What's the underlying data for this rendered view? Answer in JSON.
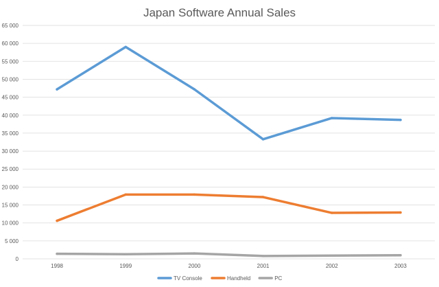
{
  "chart_data": {
    "type": "line",
    "title": "Japan Software Annual Sales",
    "xlabel": "",
    "ylabel": "",
    "categories": [
      "1998",
      "1999",
      "2000",
      "2001",
      "2002",
      "2003"
    ],
    "y_ticks": [
      "0",
      "5 000",
      "10 000",
      "15 000",
      "20 000",
      "25 000",
      "30 000",
      "35 000",
      "40 000",
      "45 000",
      "50 000",
      "55 000",
      "60 000",
      "65 000"
    ],
    "ylim": [
      0,
      65000
    ],
    "y_step": 5000,
    "grid": true,
    "legend_position": "bottom",
    "series": [
      {
        "name": "TV Console",
        "color": "#5B9BD5",
        "values": [
          47200,
          59000,
          47200,
          33300,
          39200,
          38700
        ]
      },
      {
        "name": "Handheld",
        "color": "#ED7D31",
        "values": [
          10600,
          17900,
          17900,
          17200,
          12800,
          12900
        ]
      },
      {
        "name": "PC",
        "color": "#A5A5A5",
        "values": [
          1400,
          1300,
          1500,
          800,
          900,
          1000
        ]
      }
    ]
  }
}
